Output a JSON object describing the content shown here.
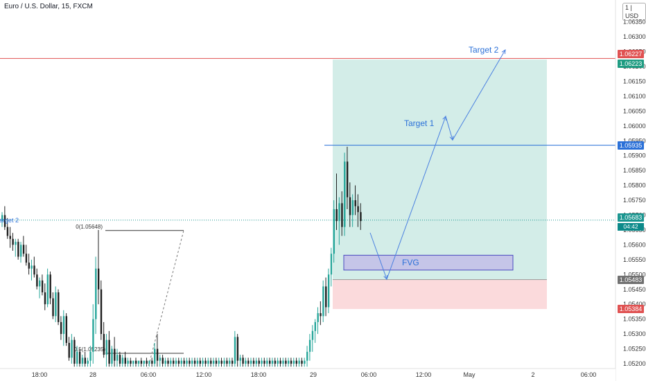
{
  "header": {
    "title": "Euro / U.S. Dollar, 15, FXCM",
    "currency": "USD",
    "currency_prefix": "1"
  },
  "colors": {
    "up": "#26a69a",
    "down": "#1e1e1e",
    "target_zone": "#d3ede8",
    "stop_zone": "#fbdadc",
    "fvg_fill": "#c5c5e8",
    "fvg_border": "#4a4ac0",
    "resistance_line": "#e05050",
    "level_line": "#2a70d8",
    "arrow": "#4a80e0",
    "annotation_text": "#2a70d8"
  },
  "chart_data": {
    "type": "candlestick",
    "symbol": "Euro / U.S. Dollar",
    "timeframe": "15",
    "source": "FXCM",
    "ylim": [
      1.0519,
      1.064
    ],
    "y_ticks": [
      "1.06350",
      "1.06300",
      "1.06250",
      "1.06200",
      "1.06150",
      "1.06100",
      "1.06050",
      "1.06000",
      "1.05950",
      "1.05900",
      "1.05850",
      "1.05800",
      "1.05750",
      "1.05700",
      "1.05650",
      "1.05600",
      "1.05550",
      "1.05500",
      "1.05450",
      "1.05400",
      "1.05350",
      "1.05300",
      "1.05250",
      "1.05200"
    ],
    "x_ticks": [
      "18:00",
      "28",
      "06:00",
      "12:00",
      "18:00",
      "29",
      "06:00",
      "12:00",
      "May",
      "2",
      "06:00"
    ],
    "price_labels": [
      {
        "value": "1.06227",
        "color": "#e05252"
      },
      {
        "value": "1.06223",
        "color": "#1f9c82"
      },
      {
        "value": "1.05935",
        "color": "#2a70d8"
      },
      {
        "value": "1.05683",
        "color": "#1b9690"
      },
      {
        "value": "1.05483",
        "color": "#707070"
      },
      {
        "value": "1.05384",
        "color": "#e05252"
      }
    ],
    "countdown": "04:42",
    "levels": {
      "resistance": 1.06227,
      "target_top": 1.06223,
      "target_1_level": 1.05935,
      "current": 1.05683,
      "entry": 1.05483,
      "stop": 1.05384
    },
    "fvg": {
      "low": 1.05515,
      "high": 1.05565,
      "label": "FVG"
    },
    "fib": {
      "level_0": "0(1.05648)",
      "level_05": "0.5(1.05235)",
      "price_0": 1.05648,
      "price_05": 1.05235
    },
    "annotations": {
      "target_1": "Target 1",
      "target_2": "Target 2",
      "left_target": "arget 2"
    },
    "candles": [
      [
        1.0568,
        1.0571,
        1.0566,
        1.057
      ],
      [
        1.057,
        1.0573,
        1.0565,
        1.0566
      ],
      [
        1.0566,
        1.0569,
        1.0562,
        1.0563
      ],
      [
        1.0563,
        1.0566,
        1.0559,
        1.0562
      ],
      [
        1.0562,
        1.0564,
        1.0558,
        1.056
      ],
      [
        1.056,
        1.0562,
        1.0556,
        1.0561
      ],
      [
        1.0561,
        1.0562,
        1.0555,
        1.0556
      ],
      [
        1.0556,
        1.0561,
        1.0554,
        1.056
      ],
      [
        1.056,
        1.0563,
        1.0556,
        1.0557
      ],
      [
        1.0557,
        1.056,
        1.0553,
        1.0554
      ],
      [
        1.0554,
        1.0557,
        1.055,
        1.0552
      ],
      [
        1.0552,
        1.0555,
        1.0548,
        1.0553
      ],
      [
        1.0553,
        1.0556,
        1.0549,
        1.055
      ],
      [
        1.055,
        1.0552,
        1.0545,
        1.0546
      ],
      [
        1.0546,
        1.0549,
        1.0542,
        1.0548
      ],
      [
        1.0548,
        1.055,
        1.0543,
        1.0544
      ],
      [
        1.0544,
        1.0547,
        1.0538,
        1.054
      ],
      [
        1.054,
        1.0552,
        1.0539,
        1.055
      ],
      [
        1.055,
        1.0551,
        1.054,
        1.0542
      ],
      [
        1.0542,
        1.0544,
        1.0535,
        1.0536
      ],
      [
        1.0536,
        1.0546,
        1.0534,
        1.0544
      ],
      [
        1.0544,
        1.0545,
        1.0533,
        1.0534
      ],
      [
        1.0534,
        1.0536,
        1.0528,
        1.053
      ],
      [
        1.053,
        1.0538,
        1.0526,
        1.0536
      ],
      [
        1.0536,
        1.0537,
        1.0526,
        1.0527
      ],
      [
        1.0527,
        1.0529,
        1.0521,
        1.0522
      ],
      [
        1.0522,
        1.053,
        1.052,
        1.0528
      ],
      [
        1.0528,
        1.0529,
        1.0519,
        1.052
      ],
      [
        1.052,
        1.0526,
        1.0519,
        1.0524
      ],
      [
        1.0524,
        1.0525,
        1.0519,
        1.052
      ],
      [
        1.052,
        1.0523,
        1.0519,
        1.0522
      ],
      [
        1.0522,
        1.0524,
        1.0519,
        1.052
      ],
      [
        1.052,
        1.0522,
        1.0519,
        1.0521
      ],
      [
        1.0521,
        1.0526,
        1.0519,
        1.0524
      ],
      [
        1.0524,
        1.054,
        1.052,
        1.0535
      ],
      [
        1.0535,
        1.0556,
        1.053,
        1.0552
      ],
      [
        1.0552,
        1.0565,
        1.054,
        1.0545
      ],
      [
        1.0545,
        1.0548,
        1.0528,
        1.053
      ],
      [
        1.053,
        1.0534,
        1.0522,
        1.0523
      ],
      [
        1.0523,
        1.053,
        1.0519,
        1.0528
      ],
      [
        1.0528,
        1.0531,
        1.0519,
        1.052
      ],
      [
        1.052,
        1.0526,
        1.0519,
        1.0525
      ],
      [
        1.0525,
        1.0529,
        1.0519,
        1.0521
      ],
      [
        1.0521,
        1.0525,
        1.0519,
        1.0523
      ],
      [
        1.0523,
        1.0524,
        1.0519,
        1.052
      ],
      [
        1.052,
        1.0523,
        1.0519,
        1.0522
      ],
      [
        1.0522,
        1.0524,
        1.0519,
        1.052
      ],
      [
        1.052,
        1.0522,
        1.0519,
        1.0521
      ],
      [
        1.0521,
        1.0522,
        1.0519,
        1.052
      ],
      [
        1.052,
        1.0521,
        1.0519,
        1.0521
      ],
      [
        1.0521,
        1.0522,
        1.0519,
        1.052
      ],
      [
        1.052,
        1.0521,
        1.0519,
        1.0521
      ],
      [
        1.0521,
        1.0522,
        1.0519,
        1.052
      ],
      [
        1.052,
        1.0521,
        1.0519,
        1.0521
      ],
      [
        1.0521,
        1.0522,
        1.0519,
        1.052
      ],
      [
        1.052,
        1.0521,
        1.0519,
        1.0521
      ],
      [
        1.0521,
        1.0522,
        1.0519,
        1.052
      ],
      [
        1.052,
        1.0527,
        1.0519,
        1.0525
      ],
      [
        1.0525,
        1.053,
        1.0519,
        1.0521
      ],
      [
        1.0521,
        1.0523,
        1.0519,
        1.0522
      ],
      [
        1.0522,
        1.0523,
        1.0519,
        1.052
      ],
      [
        1.052,
        1.0522,
        1.0519,
        1.0521
      ],
      [
        1.0521,
        1.0522,
        1.0519,
        1.052
      ],
      [
        1.052,
        1.0522,
        1.0519,
        1.0521
      ],
      [
        1.0521,
        1.0522,
        1.0519,
        1.052
      ],
      [
        1.052,
        1.0522,
        1.0519,
        1.0521
      ],
      [
        1.0521,
        1.0522,
        1.0519,
        1.052
      ],
      [
        1.052,
        1.0522,
        1.0519,
        1.0521
      ],
      [
        1.0521,
        1.0522,
        1.0519,
        1.052
      ],
      [
        1.052,
        1.0522,
        1.0519,
        1.0521
      ],
      [
        1.0521,
        1.0522,
        1.0519,
        1.052
      ],
      [
        1.052,
        1.0522,
        1.0519,
        1.0521
      ],
      [
        1.0521,
        1.0522,
        1.0519,
        1.052
      ],
      [
        1.052,
        1.0522,
        1.0519,
        1.0521
      ],
      [
        1.0521,
        1.0522,
        1.0519,
        1.052
      ],
      [
        1.052,
        1.0522,
        1.0519,
        1.0521
      ],
      [
        1.0521,
        1.0522,
        1.0519,
        1.052
      ],
      [
        1.052,
        1.0522,
        1.0519,
        1.0521
      ],
      [
        1.0521,
        1.0522,
        1.0519,
        1.052
      ],
      [
        1.052,
        1.0522,
        1.0519,
        1.0521
      ],
      [
        1.0521,
        1.0522,
        1.0519,
        1.052
      ],
      [
        1.052,
        1.0522,
        1.0519,
        1.0521
      ],
      [
        1.0521,
        1.0522,
        1.0519,
        1.052
      ],
      [
        1.052,
        1.0522,
        1.0519,
        1.0521
      ],
      [
        1.0521,
        1.0522,
        1.0519,
        1.052
      ],
      [
        1.052,
        1.0522,
        1.0519,
        1.0521
      ],
      [
        1.0521,
        1.0522,
        1.0519,
        1.052
      ],
      [
        1.052,
        1.0531,
        1.0519,
        1.0529
      ],
      [
        1.0529,
        1.053,
        1.0519,
        1.0521
      ],
      [
        1.0521,
        1.0523,
        1.0519,
        1.0522
      ],
      [
        1.0522,
        1.0523,
        1.0519,
        1.052
      ],
      [
        1.052,
        1.0522,
        1.0519,
        1.0521
      ],
      [
        1.0521,
        1.0522,
        1.0519,
        1.052
      ],
      [
        1.052,
        1.0522,
        1.0519,
        1.0521
      ],
      [
        1.0521,
        1.0522,
        1.0519,
        1.052
      ],
      [
        1.052,
        1.0522,
        1.0519,
        1.0521
      ],
      [
        1.0521,
        1.0522,
        1.0519,
        1.052
      ],
      [
        1.052,
        1.0522,
        1.0519,
        1.0521
      ],
      [
        1.0521,
        1.0522,
        1.0519,
        1.052
      ],
      [
        1.052,
        1.0522,
        1.0519,
        1.0521
      ],
      [
        1.0521,
        1.0522,
        1.0519,
        1.052
      ],
      [
        1.052,
        1.0522,
        1.0519,
        1.0521
      ],
      [
        1.0521,
        1.0522,
        1.0519,
        1.052
      ],
      [
        1.052,
        1.0522,
        1.0519,
        1.0521
      ],
      [
        1.0521,
        1.0522,
        1.0519,
        1.052
      ],
      [
        1.052,
        1.0522,
        1.0519,
        1.0521
      ],
      [
        1.0521,
        1.0522,
        1.0519,
        1.052
      ],
      [
        1.052,
        1.0522,
        1.0519,
        1.0521
      ],
      [
        1.0521,
        1.0522,
        1.0519,
        1.052
      ],
      [
        1.052,
        1.0522,
        1.0519,
        1.0521
      ],
      [
        1.0521,
        1.0522,
        1.0519,
        1.052
      ],
      [
        1.052,
        1.0522,
        1.0519,
        1.0521
      ],
      [
        1.0521,
        1.0522,
        1.0519,
        1.052
      ],
      [
        1.052,
        1.0522,
        1.0519,
        1.0521
      ],
      [
        1.0521,
        1.0526,
        1.0519,
        1.0524
      ],
      [
        1.0524,
        1.053,
        1.0521,
        1.0528
      ],
      [
        1.0528,
        1.0533,
        1.0524,
        1.0531
      ],
      [
        1.0531,
        1.0535,
        1.0527,
        1.0534
      ],
      [
        1.0534,
        1.0539,
        1.053,
        1.0537
      ],
      [
        1.0537,
        1.0541,
        1.0533,
        1.0536
      ],
      [
        1.0536,
        1.0548,
        1.0534,
        1.0546
      ],
      [
        1.0546,
        1.0549,
        1.0536,
        1.0539
      ],
      [
        1.0539,
        1.0552,
        1.0537,
        1.055
      ],
      [
        1.055,
        1.0559,
        1.0546,
        1.0557
      ],
      [
        1.0557,
        1.0575,
        1.0554,
        1.0572
      ],
      [
        1.0572,
        1.0584,
        1.0565,
        1.0568
      ],
      [
        1.0568,
        1.0576,
        1.056,
        1.0574
      ],
      [
        1.0574,
        1.0578,
        1.0563,
        1.0566
      ],
      [
        1.0566,
        1.0591,
        1.0563,
        1.0588
      ],
      [
        1.0588,
        1.0593,
        1.0572,
        1.0576
      ],
      [
        1.0576,
        1.0581,
        1.0566,
        1.057
      ],
      [
        1.057,
        1.0577,
        1.0566,
        1.0575
      ],
      [
        1.0575,
        1.058,
        1.057,
        1.0573
      ],
      [
        1.0573,
        1.0577,
        1.0566,
        1.0571
      ],
      [
        1.0571,
        1.0574,
        1.0565,
        1.0568
      ]
    ]
  }
}
